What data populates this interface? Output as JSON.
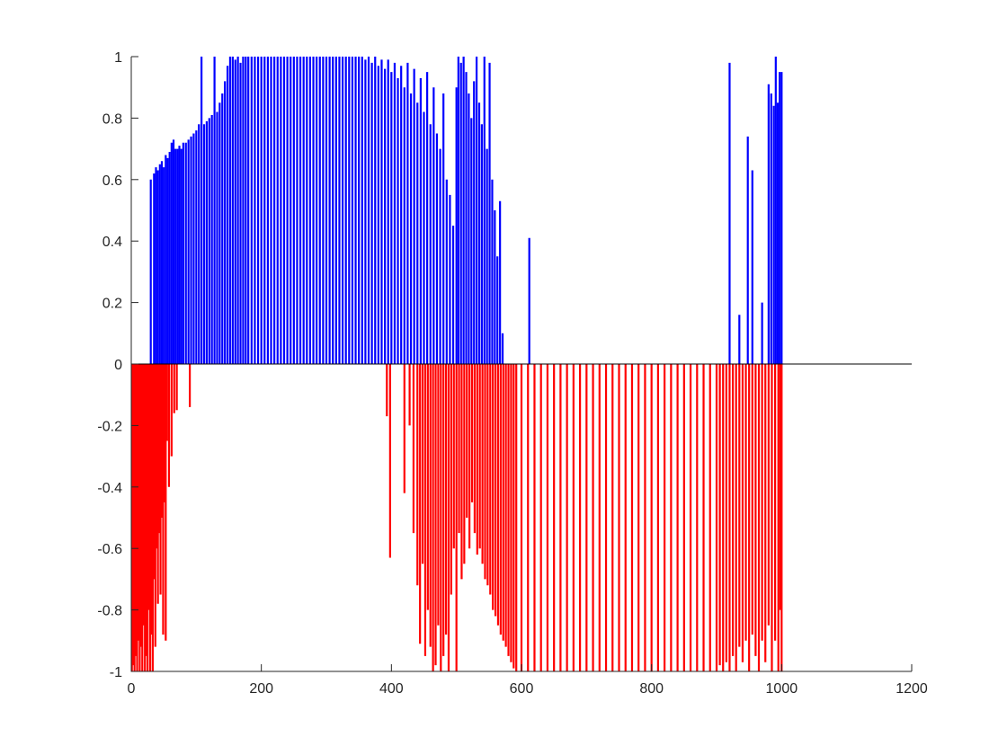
{
  "chart_data": {
    "type": "bar",
    "title": "",
    "xlabel": "",
    "ylabel": "",
    "xlim": [
      0,
      1200
    ],
    "ylim": [
      -1,
      1
    ],
    "xticks": [
      0,
      200,
      400,
      600,
      800,
      1000,
      1200
    ],
    "yticks": [
      -1,
      -0.8,
      -0.6,
      -0.4,
      -0.2,
      0,
      0.2,
      0.4,
      0.6,
      0.8,
      1
    ],
    "xtick_labels": [
      "0",
      "200",
      "400",
      "600",
      "800",
      "1000",
      "1200"
    ],
    "ytick_labels": [
      "-1",
      "-0.8",
      "-0.6",
      "-0.4",
      "-0.2",
      "0",
      "0.2",
      "0.4",
      "0.6",
      "0.8",
      "1"
    ],
    "grid": false,
    "legend": "none",
    "colors": {
      "positive": "#0000ff",
      "negative": "#ff0000",
      "zero_line": "#000000"
    },
    "series": [
      {
        "color": "#0000ff",
        "values": [
          [
            30,
            0.6
          ],
          [
            35,
            0.62
          ],
          [
            38,
            0.64
          ],
          [
            41,
            0.63
          ],
          [
            44,
            0.65
          ],
          [
            47,
            0.66
          ],
          [
            50,
            0.64
          ],
          [
            53,
            0.68
          ],
          [
            56,
            0.67
          ],
          [
            59,
            0.69
          ],
          [
            62,
            0.72
          ],
          [
            65,
            0.73
          ],
          [
            68,
            0.7
          ],
          [
            71,
            0.7
          ],
          [
            74,
            0.71
          ],
          [
            77,
            0.7
          ],
          [
            80,
            0.72
          ],
          [
            84,
            0.72
          ],
          [
            88,
            0.73
          ],
          [
            92,
            0.74
          ],
          [
            96,
            0.75
          ],
          [
            100,
            0.76
          ],
          [
            104,
            0.78
          ],
          [
            108,
            1.0
          ],
          [
            112,
            0.78
          ],
          [
            116,
            0.79
          ],
          [
            120,
            0.8
          ],
          [
            124,
            0.81
          ],
          [
            128,
            1.0
          ],
          [
            132,
            0.82
          ],
          [
            136,
            0.85
          ],
          [
            140,
            0.88
          ],
          [
            144,
            0.92
          ],
          [
            148,
            0.97
          ],
          [
            152,
            1.0
          ],
          [
            156,
            1.0
          ],
          [
            160,
            0.99
          ],
          [
            164,
            1.0
          ],
          [
            168,
            0.98
          ],
          [
            172,
            1.0
          ],
          [
            176,
            1.0
          ],
          [
            180,
            1.0
          ],
          [
            185,
            1.0
          ],
          [
            190,
            1.0
          ],
          [
            195,
            1.0
          ],
          [
            200,
            1.0
          ],
          [
            205,
            1.0
          ],
          [
            210,
            1.0
          ],
          [
            215,
            1.0
          ],
          [
            220,
            1.0
          ],
          [
            225,
            1.0
          ],
          [
            230,
            1.0
          ],
          [
            235,
            1.0
          ],
          [
            240,
            1.0
          ],
          [
            245,
            1.0
          ],
          [
            250,
            1.0
          ],
          [
            255,
            1.0
          ],
          [
            260,
            1.0
          ],
          [
            265,
            1.0
          ],
          [
            270,
            1.0
          ],
          [
            275,
            1.0
          ],
          [
            280,
            1.0
          ],
          [
            285,
            1.0
          ],
          [
            290,
            1.0
          ],
          [
            295,
            1.0
          ],
          [
            300,
            1.0
          ],
          [
            305,
            1.0
          ],
          [
            310,
            1.0
          ],
          [
            315,
            1.0
          ],
          [
            320,
            1.0
          ],
          [
            325,
            1.0
          ],
          [
            330,
            1.0
          ],
          [
            335,
            1.0
          ],
          [
            340,
            1.0
          ],
          [
            345,
            1.0
          ],
          [
            350,
            1.0
          ],
          [
            355,
            1.0
          ],
          [
            360,
            0.99
          ],
          [
            365,
            1.0
          ],
          [
            370,
            0.98
          ],
          [
            375,
            1.0
          ],
          [
            380,
            0.97
          ],
          [
            385,
            0.99
          ],
          [
            390,
            0.96
          ],
          [
            395,
            0.99
          ],
          [
            400,
            0.95
          ],
          [
            405,
            0.98
          ],
          [
            410,
            0.93
          ],
          [
            415,
            0.97
          ],
          [
            420,
            0.9
          ],
          [
            425,
            0.98
          ],
          [
            430,
            0.88
          ],
          [
            435,
            0.96
          ],
          [
            440,
            0.85
          ],
          [
            445,
            0.93
          ],
          [
            450,
            0.82
          ],
          [
            455,
            0.95
          ],
          [
            460,
            0.78
          ],
          [
            465,
            0.9
          ],
          [
            470,
            0.75
          ],
          [
            475,
            0.7
          ],
          [
            480,
            0.88
          ],
          [
            485,
            0.6
          ],
          [
            490,
            0.55
          ],
          [
            495,
            0.45
          ],
          [
            500,
            0.9
          ],
          [
            503,
            1.0
          ],
          [
            507,
            0.98
          ],
          [
            511,
            1.0
          ],
          [
            515,
            0.95
          ],
          [
            519,
            0.88
          ],
          [
            523,
            0.8
          ],
          [
            527,
            0.92
          ],
          [
            531,
            1.0
          ],
          [
            535,
            0.85
          ],
          [
            539,
            0.78
          ],
          [
            543,
            1.0
          ],
          [
            547,
            0.7
          ],
          [
            551,
            0.98
          ],
          [
            555,
            0.6
          ],
          [
            559,
            0.5
          ],
          [
            563,
            0.35
          ],
          [
            567,
            0.53
          ],
          [
            571,
            0.1
          ],
          [
            612,
            0.41
          ],
          [
            920,
            0.98
          ],
          [
            935,
            0.16
          ],
          [
            948,
            0.74
          ],
          [
            955,
            0.63
          ],
          [
            970,
            0.2
          ],
          [
            980,
            0.91
          ],
          [
            984,
            0.88
          ],
          [
            988,
            0.84
          ],
          [
            991,
            1.0
          ],
          [
            994,
            0.85
          ],
          [
            997,
            0.95
          ],
          [
            1000,
            0.95
          ]
        ]
      },
      {
        "color": "#ff0000",
        "values": [
          [
            1,
            -1.0
          ],
          [
            3,
            -0.98
          ],
          [
            5,
            -1.0
          ],
          [
            7,
            -0.95
          ],
          [
            9,
            -1.0
          ],
          [
            11,
            -0.9
          ],
          [
            13,
            -1.0
          ],
          [
            15,
            -0.92
          ],
          [
            17,
            -1.0
          ],
          [
            19,
            -0.85
          ],
          [
            21,
            -1.0
          ],
          [
            23,
            -0.95
          ],
          [
            25,
            -1.0
          ],
          [
            27,
            -0.8
          ],
          [
            29,
            -1.0
          ],
          [
            31,
            -0.88
          ],
          [
            33,
            -1.0
          ],
          [
            35,
            -0.7
          ],
          [
            37,
            -0.92
          ],
          [
            39,
            -0.6
          ],
          [
            41,
            -0.78
          ],
          [
            43,
            -0.55
          ],
          [
            45,
            -0.75
          ],
          [
            47,
            -0.5
          ],
          [
            49,
            -0.88
          ],
          [
            51,
            -0.45
          ],
          [
            53,
            -0.9
          ],
          [
            55,
            -0.25
          ],
          [
            58,
            -0.4
          ],
          [
            62,
            -0.3
          ],
          [
            66,
            -0.16
          ],
          [
            70,
            -0.15
          ],
          [
            90,
            -0.14
          ],
          [
            393,
            -0.17
          ],
          [
            398,
            -0.63
          ],
          [
            420,
            -0.42
          ],
          [
            428,
            -0.2
          ],
          [
            434,
            -0.55
          ],
          [
            440,
            -0.72
          ],
          [
            444,
            -0.91
          ],
          [
            448,
            -0.65
          ],
          [
            452,
            -0.95
          ],
          [
            456,
            -0.8
          ],
          [
            460,
            -0.92
          ],
          [
            464,
            -1.0
          ],
          [
            468,
            -0.98
          ],
          [
            472,
            -0.85
          ],
          [
            476,
            -1.0
          ],
          [
            480,
            -0.95
          ],
          [
            484,
            -0.88
          ],
          [
            488,
            -1.0
          ],
          [
            492,
            -0.75
          ],
          [
            496,
            -0.6
          ],
          [
            500,
            -1.0
          ],
          [
            504,
            -0.55
          ],
          [
            508,
            -0.7
          ],
          [
            512,
            -0.65
          ],
          [
            516,
            -0.5
          ],
          [
            520,
            -0.6
          ],
          [
            524,
            -0.45
          ],
          [
            528,
            -0.55
          ],
          [
            532,
            -0.62
          ],
          [
            536,
            -0.6
          ],
          [
            540,
            -0.65
          ],
          [
            544,
            -0.7
          ],
          [
            548,
            -0.72
          ],
          [
            552,
            -0.75
          ],
          [
            556,
            -0.8
          ],
          [
            560,
            -0.82
          ],
          [
            564,
            -0.85
          ],
          [
            568,
            -0.88
          ],
          [
            572,
            -0.9
          ],
          [
            576,
            -0.92
          ],
          [
            580,
            -0.95
          ],
          [
            584,
            -0.97
          ],
          [
            588,
            -0.99
          ],
          [
            592,
            -1.0
          ],
          [
            600,
            -1.0
          ],
          [
            610,
            -1.0
          ],
          [
            620,
            -1.0
          ],
          [
            630,
            -1.0
          ],
          [
            640,
            -1.0
          ],
          [
            650,
            -1.0
          ],
          [
            660,
            -1.0
          ],
          [
            670,
            -1.0
          ],
          [
            680,
            -1.0
          ],
          [
            690,
            -1.0
          ],
          [
            700,
            -1.0
          ],
          [
            710,
            -1.0
          ],
          [
            720,
            -1.0
          ],
          [
            730,
            -1.0
          ],
          [
            740,
            -1.0
          ],
          [
            750,
            -1.0
          ],
          [
            760,
            -1.0
          ],
          [
            770,
            -1.0
          ],
          [
            780,
            -1.0
          ],
          [
            790,
            -1.0
          ],
          [
            800,
            -1.0
          ],
          [
            810,
            -1.0
          ],
          [
            820,
            -1.0
          ],
          [
            830,
            -1.0
          ],
          [
            840,
            -1.0
          ],
          [
            850,
            -1.0
          ],
          [
            860,
            -1.0
          ],
          [
            870,
            -1.0
          ],
          [
            880,
            -1.0
          ],
          [
            890,
            -1.0
          ],
          [
            900,
            -1.0
          ],
          [
            905,
            -0.98
          ],
          [
            910,
            -1.0
          ],
          [
            915,
            -0.97
          ],
          [
            920,
            -1.0
          ],
          [
            925,
            -0.95
          ],
          [
            930,
            -1.0
          ],
          [
            935,
            -0.92
          ],
          [
            940,
            -0.97
          ],
          [
            945,
            -0.9
          ],
          [
            950,
            -1.0
          ],
          [
            955,
            -0.88
          ],
          [
            960,
            -0.95
          ],
          [
            965,
            -1.0
          ],
          [
            970,
            -0.9
          ],
          [
            975,
            -0.97
          ],
          [
            980,
            -0.85
          ],
          [
            985,
            -1.0
          ],
          [
            990,
            -0.9
          ],
          [
            995,
            -1.0
          ],
          [
            998,
            -0.8
          ],
          [
            1000,
            -1.0
          ]
        ]
      }
    ]
  }
}
